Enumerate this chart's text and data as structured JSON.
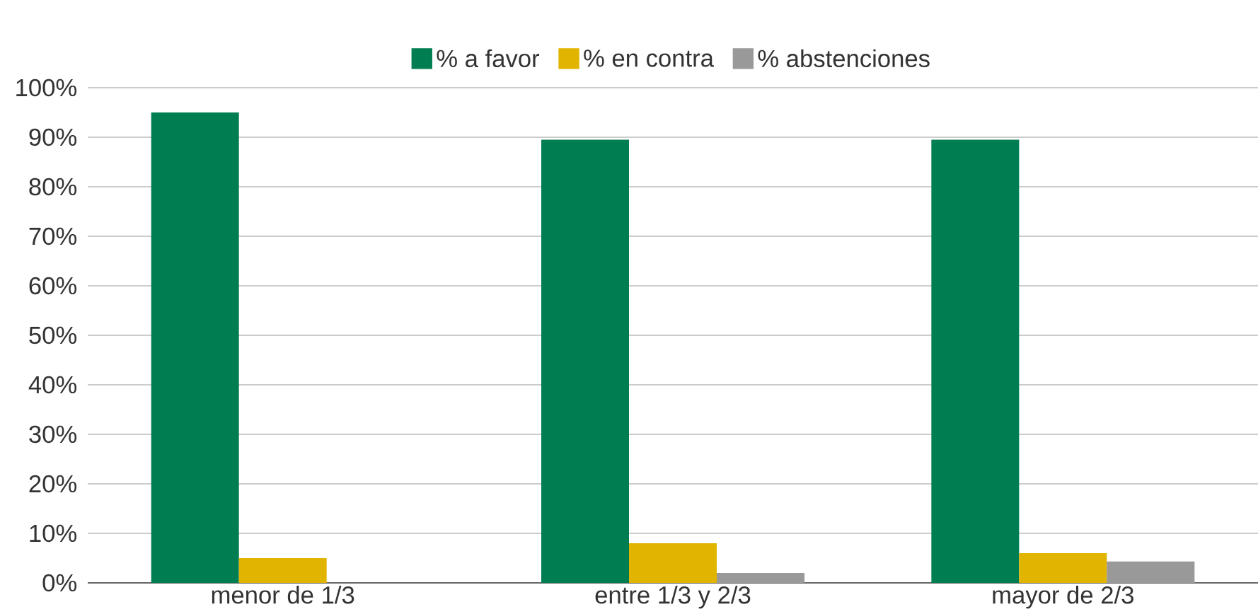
{
  "chart_data": {
    "type": "bar",
    "categories": [
      "menor de 1/3",
      "entre 1/3 y 2/3",
      "mayor de 2/3"
    ],
    "series": [
      {
        "name": "% a favor",
        "color": "#007e52",
        "values": [
          95,
          89.5,
          89.5
        ]
      },
      {
        "name": "% en contra",
        "color": "#e0b400",
        "values": [
          5,
          8,
          6
        ]
      },
      {
        "name": "% abstenciones",
        "color": "#999999",
        "values": [
          0,
          2,
          4.3
        ]
      }
    ],
    "ylim": [
      0,
      100
    ],
    "yticks": [
      {
        "value": 0,
        "label": "0%"
      },
      {
        "value": 10,
        "label": "10%"
      },
      {
        "value": 20,
        "label": "20%"
      },
      {
        "value": 30,
        "label": "30%"
      },
      {
        "value": 40,
        "label": "40%"
      },
      {
        "value": 50,
        "label": "50%"
      },
      {
        "value": 60,
        "label": "60%"
      },
      {
        "value": 70,
        "label": "70%"
      },
      {
        "value": 80,
        "label": "80%"
      },
      {
        "value": 90,
        "label": "90%"
      },
      {
        "value": 100,
        "label": "100%"
      }
    ],
    "grid": "y",
    "legend": "top"
  }
}
